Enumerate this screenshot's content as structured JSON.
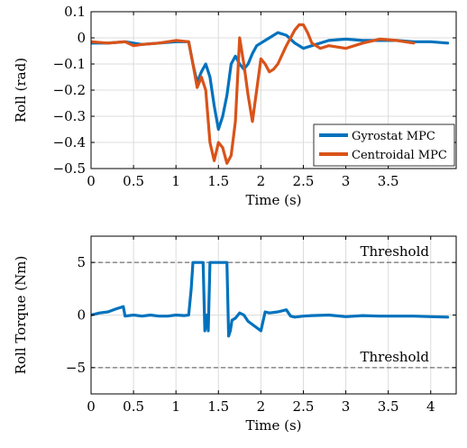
{
  "colors": {
    "gyrostat": "#0072BD",
    "centroidal": "#D95319",
    "grid": "#dcdcdc",
    "threshold": "#555555"
  },
  "chart_data": [
    {
      "type": "line",
      "xlabel": "Time (s)",
      "ylabel": "Roll (rad)",
      "xlim": [
        0,
        4.3
      ],
      "ylim": [
        -0.5,
        0.1
      ],
      "xticks": [
        "0",
        "0.5",
        "1",
        "1.5",
        "2",
        "2.5",
        "3",
        "3.5"
      ],
      "yticks": [
        "0.1",
        "0",
        "−0.1",
        "−0.2",
        "−0.3",
        "−0.4",
        "−0.5"
      ],
      "grid": true,
      "legend": "bottom-right",
      "series": [
        {
          "name": "Gyrostat MPC",
          "color": "gyrostat",
          "x": [
            0,
            0.2,
            0.4,
            0.5,
            0.6,
            0.8,
            1.0,
            1.15,
            1.2,
            1.25,
            1.3,
            1.35,
            1.4,
            1.45,
            1.5,
            1.55,
            1.6,
            1.65,
            1.7,
            1.75,
            1.8,
            1.85,
            1.9,
            1.95,
            2.0,
            2.05,
            2.1,
            2.2,
            2.3,
            2.4,
            2.5,
            2.6,
            2.8,
            3.0,
            3.2,
            3.4,
            3.6,
            3.8,
            4.0,
            4.2
          ],
          "y": [
            -0.02,
            -0.02,
            -0.015,
            -0.02,
            -0.025,
            -0.02,
            -0.015,
            -0.015,
            -0.1,
            -0.17,
            -0.13,
            -0.1,
            -0.15,
            -0.26,
            -0.35,
            -0.3,
            -0.22,
            -0.1,
            -0.07,
            -0.1,
            -0.12,
            -0.1,
            -0.06,
            -0.03,
            -0.02,
            -0.01,
            0.0,
            0.02,
            0.01,
            -0.02,
            -0.04,
            -0.03,
            -0.01,
            -0.005,
            -0.01,
            -0.01,
            -0.01,
            -0.015,
            -0.015,
            -0.02
          ]
        },
        {
          "name": "Centroidal MPC",
          "color": "centroidal",
          "x": [
            0,
            0.2,
            0.4,
            0.5,
            0.6,
            0.8,
            1.0,
            1.15,
            1.2,
            1.25,
            1.3,
            1.35,
            1.4,
            1.45,
            1.5,
            1.55,
            1.6,
            1.65,
            1.7,
            1.75,
            1.8,
            1.85,
            1.9,
            1.95,
            2.0,
            2.05,
            2.1,
            2.15,
            2.2,
            2.3,
            2.4,
            2.45,
            2.5,
            2.55,
            2.6,
            2.7,
            2.8,
            3.0,
            3.2,
            3.4,
            3.6,
            3.8
          ],
          "y": [
            -0.015,
            -0.02,
            -0.015,
            -0.03,
            -0.025,
            -0.02,
            -0.01,
            -0.015,
            -0.1,
            -0.19,
            -0.15,
            -0.2,
            -0.4,
            -0.47,
            -0.4,
            -0.42,
            -0.48,
            -0.45,
            -0.32,
            0.0,
            -0.1,
            -0.22,
            -0.32,
            -0.2,
            -0.08,
            -0.1,
            -0.13,
            -0.12,
            -0.1,
            -0.03,
            0.03,
            0.05,
            0.05,
            0.02,
            -0.02,
            -0.04,
            -0.03,
            -0.04,
            -0.02,
            -0.005,
            -0.01,
            -0.02
          ]
        }
      ]
    },
    {
      "type": "line",
      "xlabel": "Time (s)",
      "ylabel": "Roll Torque (Nm)",
      "xlim": [
        0,
        4.3
      ],
      "ylim": [
        -7.5,
        7.5
      ],
      "xticks": [
        "0",
        "0.5",
        "1",
        "1.5",
        "2",
        "2.5",
        "3",
        "3.5",
        "4"
      ],
      "yticks": [
        "5",
        "0",
        "−5"
      ],
      "grid": true,
      "annotations": [
        {
          "text": "Threshold",
          "y": 5
        },
        {
          "text": "Threshold",
          "y": -5
        }
      ],
      "series": [
        {
          "color": "gyrostat",
          "x": [
            0,
            0.1,
            0.2,
            0.3,
            0.38,
            0.4,
            0.5,
            0.6,
            0.7,
            0.8,
            0.9,
            1.0,
            1.1,
            1.15,
            1.18,
            1.2,
            1.25,
            1.3,
            1.32,
            1.34,
            1.36,
            1.38,
            1.4,
            1.42,
            1.44,
            1.5,
            1.55,
            1.6,
            1.62,
            1.64,
            1.66,
            1.7,
            1.75,
            1.8,
            1.85,
            1.9,
            1.95,
            2.0,
            2.05,
            2.1,
            2.2,
            2.3,
            2.35,
            2.4,
            2.5,
            2.6,
            2.8,
            3.0,
            3.2,
            3.4,
            3.6,
            3.8,
            4.0,
            4.2
          ],
          "y": [
            0,
            0.2,
            0.3,
            0.6,
            0.8,
            -0.1,
            0,
            -0.1,
            0,
            -0.1,
            -0.1,
            0,
            -0.05,
            0,
            2.5,
            5,
            5,
            5,
            5,
            -1.5,
            0,
            -1.5,
            5,
            5,
            5,
            5,
            5,
            5,
            -2,
            -1.5,
            -0.5,
            -0.3,
            0.2,
            0,
            -0.6,
            -0.9,
            -1.2,
            -1.5,
            0.3,
            0.2,
            0.3,
            0.5,
            -0.1,
            -0.2,
            -0.1,
            -0.05,
            0,
            -0.15,
            -0.05,
            -0.1,
            -0.1,
            -0.1,
            -0.15,
            -0.2
          ]
        }
      ]
    }
  ]
}
